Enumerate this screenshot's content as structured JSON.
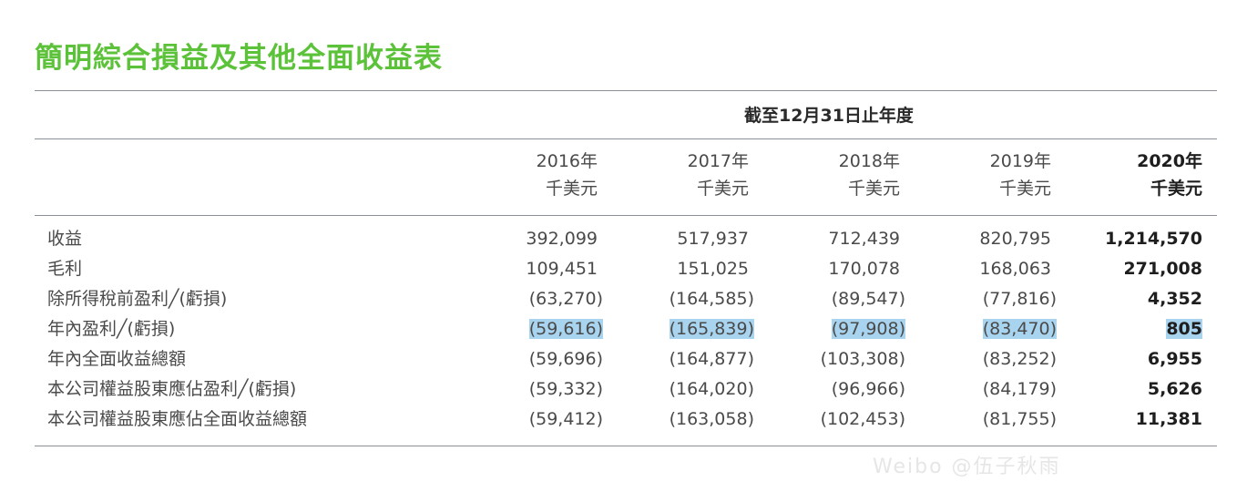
{
  "title": "簡明綜合損益及其他全面收益表",
  "period_header": "截至12月31日止年度",
  "columns": [
    {
      "year": "2016年",
      "unit": "千美元"
    },
    {
      "year": "2017年",
      "unit": "千美元"
    },
    {
      "year": "2018年",
      "unit": "千美元"
    },
    {
      "year": "2019年",
      "unit": "千美元"
    },
    {
      "year": "2020年",
      "unit": "千美元"
    }
  ],
  "rows": [
    {
      "label": "收益",
      "values": [
        "392,099",
        "517,937",
        "712,439",
        "820,795",
        "1,214,570"
      ]
    },
    {
      "label": "毛利",
      "values": [
        "109,451",
        "151,025",
        "170,078",
        "168,063",
        "271,008"
      ]
    },
    {
      "label": "除所得稅前盈利╱(虧損)",
      "values": [
        "(63,270)",
        "(164,585)",
        "(89,547)",
        "(77,816)",
        "4,352"
      ]
    },
    {
      "label": "年內盈利╱(虧損)",
      "values": [
        "(59,616)",
        "(165,839)",
        "(97,908)",
        "(83,470)",
        "805"
      ]
    },
    {
      "label": "年內全面收益總額",
      "values": [
        "(59,696)",
        "(164,877)",
        "(103,308)",
        "(83,252)",
        "6,955"
      ]
    },
    {
      "label": "本公司權益股東應佔盈利╱(虧損)",
      "values": [
        "(59,332)",
        "(164,020)",
        "(96,966)",
        "(84,179)",
        "5,626"
      ]
    },
    {
      "label": "本公司權益股東應佔全面收益總額",
      "values": [
        "(59,412)",
        "(163,058)",
        "(102,453)",
        "(81,755)",
        "11,381"
      ]
    }
  ],
  "watermark": "Weibo @伍子秋雨",
  "colors": {
    "title": "#5cc23a",
    "highlight": "#a9d4ef",
    "rule": "#8a8f9a"
  }
}
